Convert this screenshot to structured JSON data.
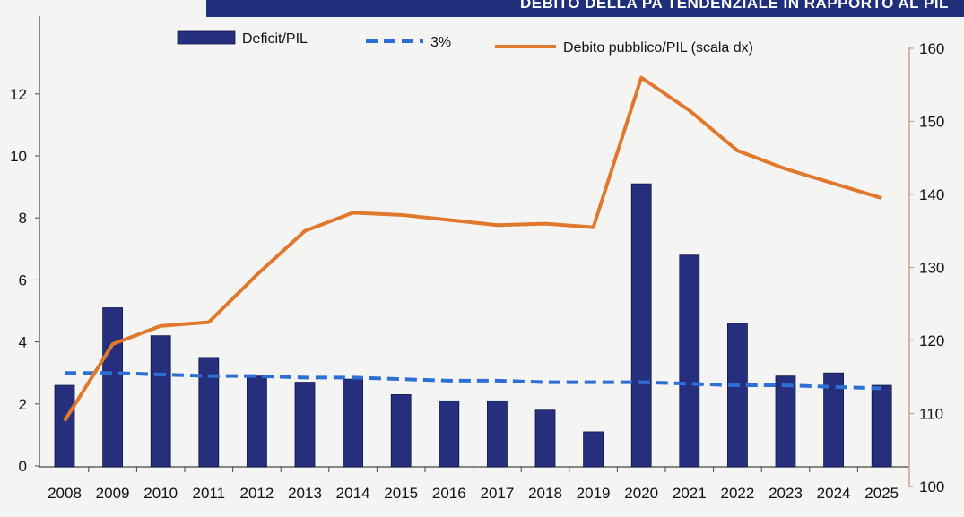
{
  "header": {
    "title": "DEBITO DELLA PA TENDENZIALE IN RAPPORTO AL PIL"
  },
  "colors": {
    "bar": "#262f7e",
    "threshold": "#2e6fd6",
    "debt_line": "#e0782e",
    "banner": "#1f2f7a",
    "right_axis": "#c09080"
  },
  "chart_data": {
    "type": "bar",
    "categories": [
      "2008",
      "2009",
      "2010",
      "2011",
      "2012",
      "2013",
      "2014",
      "2015",
      "2016",
      "2017",
      "2018",
      "2019",
      "2020",
      "2021",
      "2022",
      "2023",
      "2024",
      "2025"
    ],
    "series": [
      {
        "name": "Deficit/PIL",
        "type": "bar",
        "axis": "left",
        "values": [
          2.6,
          5.1,
          4.2,
          3.5,
          2.9,
          2.7,
          2.8,
          2.3,
          2.1,
          2.1,
          1.8,
          1.1,
          9.1,
          6.8,
          4.6,
          2.9,
          3.0,
          2.6
        ]
      },
      {
        "name": "3%",
        "type": "line",
        "style": "dashed",
        "axis": "left",
        "values": [
          3.0,
          3.0,
          2.95,
          2.9,
          2.9,
          2.85,
          2.85,
          2.8,
          2.75,
          2.75,
          2.7,
          2.7,
          2.7,
          2.65,
          2.6,
          2.6,
          2.55,
          2.5
        ]
      },
      {
        "name": "Debito pubblico/PIL (scala dx)",
        "type": "line",
        "axis": "right",
        "values": [
          109,
          119.5,
          122,
          122.5,
          129,
          135,
          137.5,
          137.2,
          136.5,
          135.8,
          136,
          135.5,
          156,
          151.5,
          146,
          143.5,
          141.5,
          139.5
        ]
      }
    ],
    "y_left": {
      "ticks": [
        "0",
        "2",
        "4",
        "6",
        "8",
        "10",
        "12"
      ],
      "range": [
        0,
        12
      ]
    },
    "y_right": {
      "ticks": [
        "100",
        "110",
        "120",
        "130",
        "140",
        "150",
        "160"
      ],
      "range": [
        100,
        160
      ]
    },
    "legend": [
      {
        "label": "Deficit/PIL",
        "kind": "bar"
      },
      {
        "label": "3%",
        "kind": "dashed"
      },
      {
        "label": "Debito pubblico/PIL (scala dx)",
        "kind": "line"
      }
    ],
    "legend_position": "top",
    "grid": false
  }
}
